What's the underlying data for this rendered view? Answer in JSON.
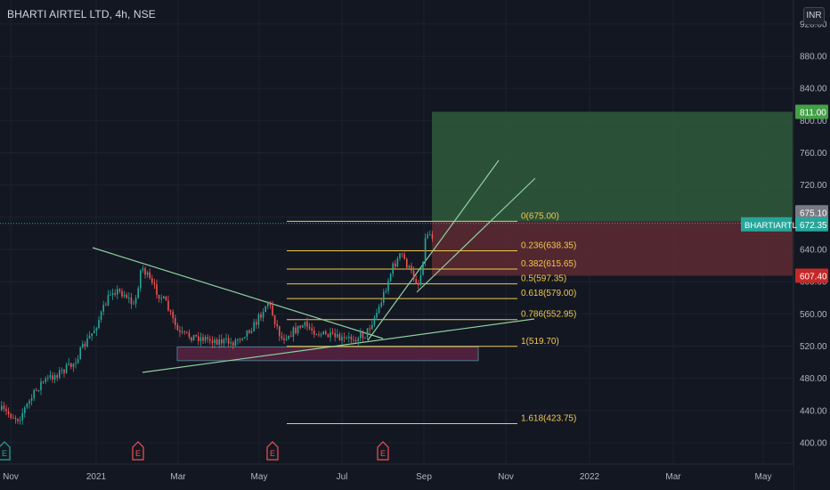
{
  "header": {
    "title": "BHARTI AIRTEL LTD, 4h, NSE",
    "currency": "INR"
  },
  "chart_data": {
    "type": "candlestick",
    "symbol": "BHARTIARTL",
    "timeframe": "4h",
    "exchange": "NSE",
    "currency": "INR",
    "y_axis": {
      "ticks": [
        "920.00",
        "880.00",
        "840.00",
        "800.00",
        "760.00",
        "720.00",
        "680.00",
        "640.00",
        "600.00",
        "560.00",
        "520.00",
        "480.00",
        "440.00",
        "400.00"
      ],
      "range": [
        383,
        926
      ]
    },
    "x_axis": {
      "ticks": [
        "Nov",
        "2021",
        "Mar",
        "May",
        "Jul",
        "Sep",
        "Nov",
        "2022",
        "Mar",
        "May"
      ]
    },
    "price_labels": {
      "target": "811.00",
      "entry": "675.10",
      "symbol": "BHARTIARTL",
      "last": "672.35",
      "stop": "607.40"
    },
    "fibonacci": [
      {
        "label": "0(675.00)",
        "price": 675.0
      },
      {
        "label": "0.236(638.35)",
        "price": 638.35
      },
      {
        "label": "0.382(615.65)",
        "price": 615.65
      },
      {
        "label": "0.5(597.35)",
        "price": 597.35
      },
      {
        "label": "0.618(579.00)",
        "price": 579.0
      },
      {
        "label": "0.786(552.95)",
        "price": 552.95
      },
      {
        "label": "1(519.70)",
        "price": 519.7
      },
      {
        "label": "1.618(423.75)",
        "price": 423.75
      }
    ],
    "events": [
      "E",
      "E",
      "E",
      "E"
    ],
    "colors": {
      "up": "#26a69a",
      "down": "#ef5350",
      "fib": "#f2c94c",
      "trend": "#8fd19e",
      "profit_zone": "#2f5a3c",
      "loss_zone": "#5e2a33",
      "support_zone": "#5a2342",
      "target_label": "#43a047",
      "stop_label": "#c62828",
      "entry_label": "#787b86",
      "last_label": "#26a69a"
    }
  }
}
